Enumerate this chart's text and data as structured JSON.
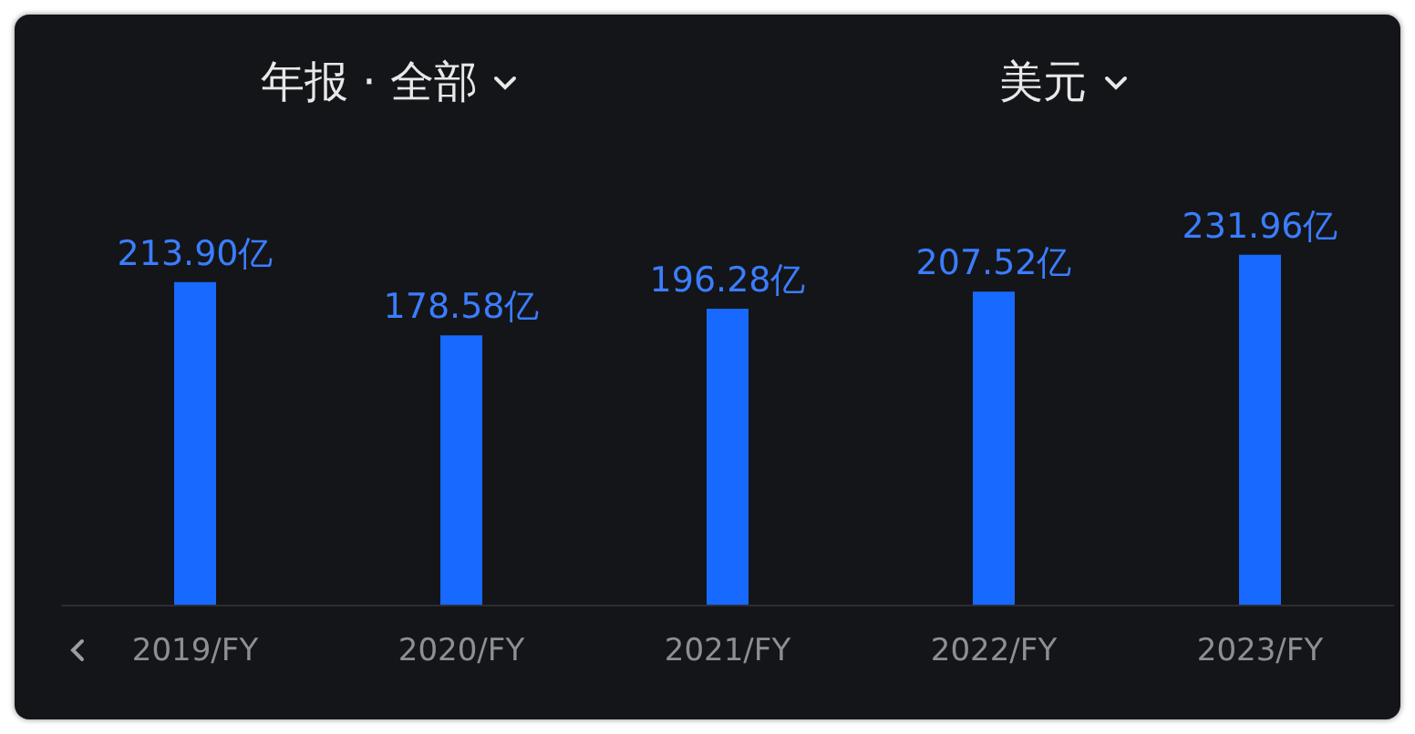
{
  "chart_data": {
    "type": "bar",
    "title": "年报 · 全部",
    "subtitle": "美元",
    "categories": [
      "2019/FY",
      "2020/FY",
      "2021/FY",
      "2022/FY",
      "2023/FY"
    ],
    "values": [
      213.9,
      178.58,
      196.28,
      207.52,
      231.96
    ],
    "value_labels": [
      "213.90亿",
      "178.58亿",
      "196.28亿",
      "207.52亿",
      "231.96亿"
    ],
    "color": "#1769ff"
  }
}
